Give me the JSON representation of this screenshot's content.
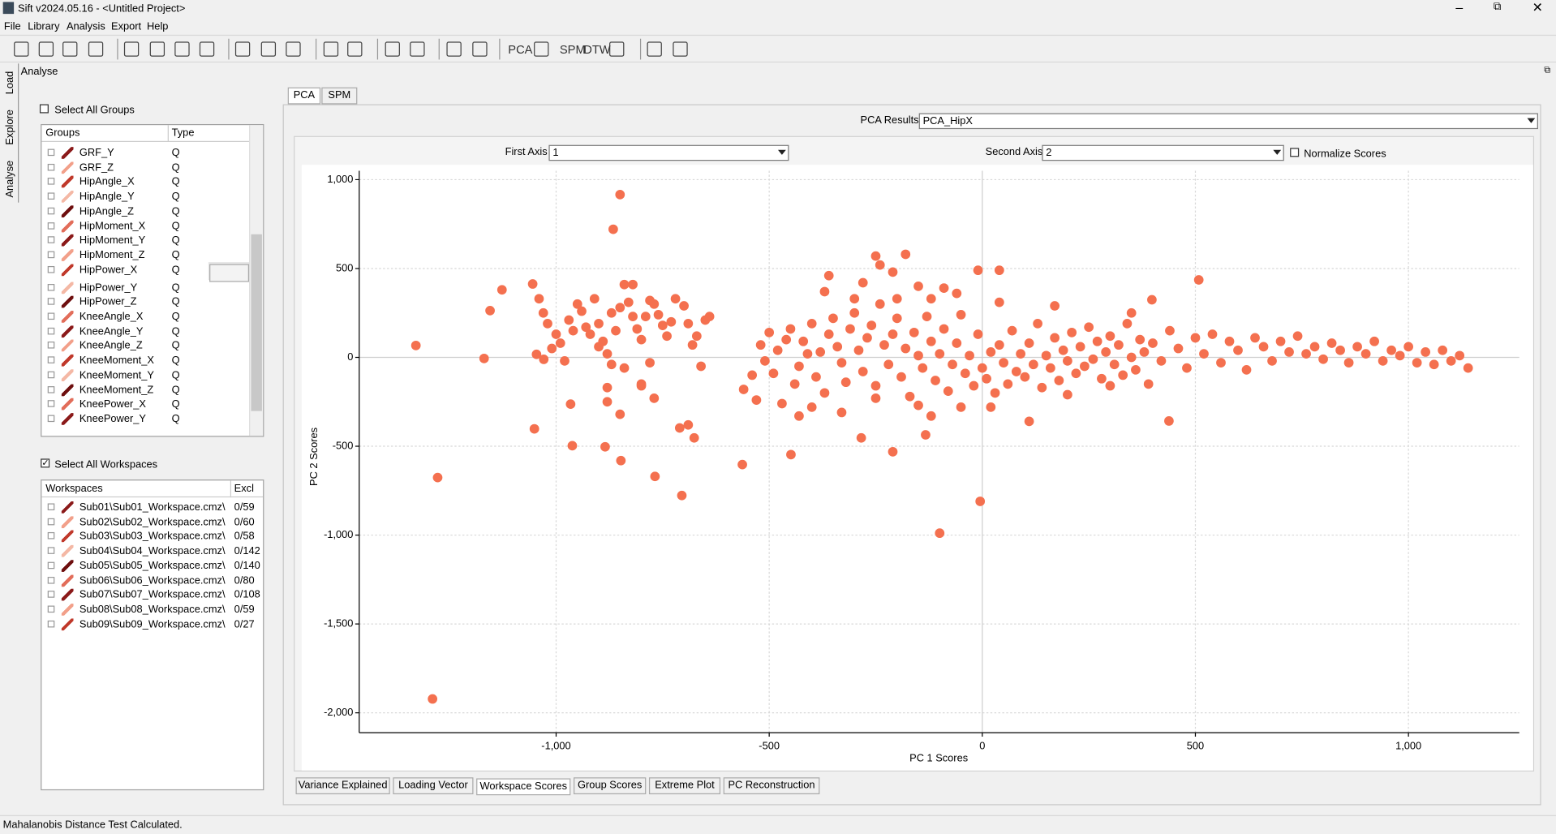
{
  "window": {
    "title": "Sift v2024.05.16 - <Untitled Project>"
  },
  "menu": [
    "File",
    "Library",
    "Analysis",
    "Export",
    "Help"
  ],
  "toolbar": [
    "PCA",
    "SPM",
    "DTW"
  ],
  "side_tabs": [
    "Load",
    "Explore",
    "Analyse"
  ],
  "panel_title": "Analyse",
  "groups": {
    "select_all": "Select All Groups",
    "headers": [
      "Groups",
      "Type"
    ],
    "rows": [
      [
        "GRF_Y",
        "Q"
      ],
      [
        "GRF_Z",
        "Q"
      ],
      [
        "HipAngle_X",
        "Q"
      ],
      [
        "HipAngle_Y",
        "Q"
      ],
      [
        "HipAngle_Z",
        "Q"
      ],
      [
        "HipMoment_X",
        "Q"
      ],
      [
        "HipMoment_Y",
        "Q"
      ],
      [
        "HipMoment_Z",
        "Q"
      ],
      [
        "HipPower_X",
        "Q"
      ],
      [
        "HipPower_Y",
        "Q"
      ],
      [
        "HipPower_Z",
        "Q"
      ],
      [
        "KneeAngle_X",
        "Q"
      ],
      [
        "KneeAngle_Y",
        "Q"
      ],
      [
        "KneeAngle_Z",
        "Q"
      ],
      [
        "KneeMoment_X",
        "Q"
      ],
      [
        "KneeMoment_Y",
        "Q"
      ],
      [
        "KneeMoment_Z",
        "Q"
      ],
      [
        "KneePower_X",
        "Q"
      ],
      [
        "KneePower_Y",
        "Q"
      ]
    ]
  },
  "workspaces": {
    "select_all": "Select All Workspaces",
    "headers": [
      "Workspaces",
      "Excl"
    ],
    "rows": [
      [
        "Sub01\\Sub01_Workspace.cmz\\",
        "0/59"
      ],
      [
        "Sub02\\Sub02_Workspace.cmz\\",
        "0/60"
      ],
      [
        "Sub03\\Sub03_Workspace.cmz\\",
        "0/58"
      ],
      [
        "Sub04\\Sub04_Workspace.cmz\\",
        "0/142"
      ],
      [
        "Sub05\\Sub05_Workspace.cmz\\",
        "0/140"
      ],
      [
        "Sub06\\Sub06_Workspace.cmz\\",
        "0/80"
      ],
      [
        "Sub07\\Sub07_Workspace.cmz\\",
        "0/108"
      ],
      [
        "Sub08\\Sub08_Workspace.cmz\\",
        "0/59"
      ],
      [
        "Sub09\\Sub09_Workspace.cmz\\",
        "0/27"
      ]
    ]
  },
  "top_tabs": [
    "PCA",
    "SPM"
  ],
  "pca_results": {
    "label": "PCA Results:",
    "value": "PCA_HipX"
  },
  "first_axis": {
    "label": "First Axis",
    "value": "1"
  },
  "second_axis": {
    "label": "Second Axis",
    "value": "2"
  },
  "normalize": "Normalize Scores",
  "chart_data": {
    "type": "scatter",
    "x_label": "PC 1 Scores",
    "y_label": "PC 2 Scores",
    "color": "#f4704f",
    "grid": true,
    "xlim": [
      -1462,
      1260
    ],
    "ylim": [
      -2112,
      1050
    ],
    "xticks": [
      {
        "value": -1000,
        "label": "-1,000"
      },
      -500,
      0,
      500,
      {
        "value": 1000,
        "label": "1,000"
      }
    ],
    "yticks": [
      {
        "value": 1000,
        "label": "1,000"
      },
      500,
      0,
      -500,
      {
        "value": -1000,
        "label": "-1,000"
      },
      {
        "value": -1500,
        "label": "-1,500"
      },
      {
        "value": -2000,
        "label": "-2,000"
      }
    ],
    "x": [
      -1329,
      -1278,
      -1290,
      -1169,
      -1155,
      -1127,
      -1055,
      -1051,
      -1029,
      -1046,
      -962,
      -966,
      -850,
      -866,
      -885,
      -848,
      -768,
      -705,
      -710,
      -676,
      -100,
      -5,
      508,
      438,
      398,
      -563,
      -449,
      -284,
      -210,
      -133,
      -1040,
      -1030,
      -1020,
      -1000,
      -990,
      -970,
      -950,
      -940,
      -930,
      -920,
      -910,
      -900,
      -890,
      -880,
      -870,
      -860,
      -850,
      -840,
      -830,
      -820,
      -810,
      -800,
      -790,
      -780,
      -770,
      -760,
      -750,
      -740,
      -730,
      -720,
      -700,
      -690,
      -680,
      -670,
      -660,
      -650,
      -640,
      -800,
      -850,
      -880,
      -880,
      -1010,
      -980,
      -840,
      -800,
      -770,
      -690,
      -960,
      -900,
      -870,
      -780,
      -820,
      -560,
      -540,
      -530,
      -520,
      -510,
      -500,
      -490,
      -480,
      -470,
      -460,
      -450,
      -440,
      -430,
      -420,
      -410,
      -400,
      -390,
      -380,
      -370,
      -360,
      -350,
      -340,
      -330,
      -320,
      -310,
      -300,
      -290,
      -280,
      -270,
      -260,
      -250,
      -240,
      -230,
      -220,
      -210,
      -200,
      -190,
      -180,
      -170,
      -160,
      -150,
      -140,
      -130,
      -120,
      -110,
      -100,
      -90,
      -80,
      -70,
      -60,
      -50,
      -40,
      -30,
      -20,
      -10,
      0,
      10,
      20,
      30,
      40,
      50,
      60,
      70,
      80,
      90,
      100,
      110,
      120,
      130,
      140,
      150,
      160,
      170,
      180,
      190,
      200,
      210,
      220,
      230,
      240,
      250,
      260,
      270,
      280,
      290,
      300,
      310,
      320,
      330,
      340,
      350,
      360,
      370,
      380,
      390,
      400,
      420,
      440,
      460,
      480,
      500,
      520,
      540,
      560,
      580,
      600,
      620,
      640,
      660,
      680,
      700,
      720,
      740,
      760,
      780,
      800,
      820,
      840,
      860,
      880,
      900,
      920,
      940,
      960,
      980,
      1000,
      1020,
      1040,
      1060,
      1080,
      1100,
      1120,
      1140,
      -360,
      -300,
      -250,
      -240,
      -210,
      -180,
      -150,
      -90,
      -60,
      -10,
      40,
      -370,
      -280,
      -120,
      40,
      170,
      350,
      -200,
      -430,
      -330,
      -250,
      -150,
      -50,
      20,
      110,
      200,
      300,
      -400,
      -120
    ],
    "values": [
      67,
      -676,
      -1922,
      -6,
      263,
      380,
      413,
      -402,
      -11,
      17,
      -497,
      -263,
      916,
      721,
      -503,
      -581,
      -670,
      -777,
      -397,
      -453,
      -989,
      -810,
      436,
      -358,
      324,
      -603,
      -547,
      -453,
      -531,
      -436,
      330,
      250,
      190,
      130,
      80,
      210,
      300,
      260,
      170,
      130,
      330,
      190,
      90,
      20,
      250,
      150,
      280,
      410,
      310,
      230,
      160,
      100,
      230,
      320,
      300,
      240,
      180,
      120,
      200,
      330,
      290,
      190,
      70,
      120,
      -50,
      210,
      230,
      -160,
      -320,
      -170,
      -250,
      50,
      -20,
      -60,
      -150,
      -230,
      -380,
      150,
      60,
      -40,
      -30,
      410,
      -180,
      -100,
      -240,
      70,
      -20,
      140,
      -90,
      40,
      -260,
      100,
      160,
      -150,
      -50,
      90,
      20,
      190,
      -110,
      30,
      -200,
      130,
      220,
      60,
      -30,
      -140,
      160,
      250,
      40,
      -80,
      110,
      180,
      -160,
      300,
      70,
      -40,
      130,
      220,
      -110,
      50,
      -220,
      140,
      10,
      -60,
      230,
      90,
      -130,
      20,
      160,
      -190,
      -40,
      80,
      240,
      -90,
      10,
      -160,
      130,
      -60,
      -120,
      30,
      -200,
      70,
      -30,
      -150,
      150,
      -80,
      20,
      -110,
      80,
      -40,
      190,
      -170,
      10,
      -60,
      110,
      -130,
      40,
      -20,
      140,
      -90,
      60,
      -50,
      170,
      -10,
      90,
      -120,
      30,
      120,
      -40,
      70,
      -100,
      190,
      0,
      -70,
      100,
      30,
      -150,
      80,
      -20,
      150,
      50,
      -60,
      110,
      20,
      130,
      -30,
      90,
      40,
      -70,
      110,
      60,
      -20,
      90,
      30,
      120,
      20,
      60,
      -10,
      80,
      40,
      -30,
      60,
      20,
      90,
      -20,
      40,
      10,
      60,
      -30,
      30,
      -40,
      40,
      -20,
      10,
      -60,
      460,
      330,
      570,
      520,
      480,
      580,
      400,
      390,
      360,
      490,
      490,
      370,
      420,
      330,
      310,
      290,
      250,
      330,
      -330,
      -310,
      -230,
      -270,
      -280,
      -280,
      -360,
      -210,
      -160,
      -280,
      -330
    ]
  },
  "bottom_tabs": [
    "Variance Explained",
    "Loading Vector",
    "Workspace Scores",
    "Group Scores",
    "Extreme Plot",
    "PC Reconstruction"
  ],
  "status": "Mahalanobis Distance Test Calculated."
}
